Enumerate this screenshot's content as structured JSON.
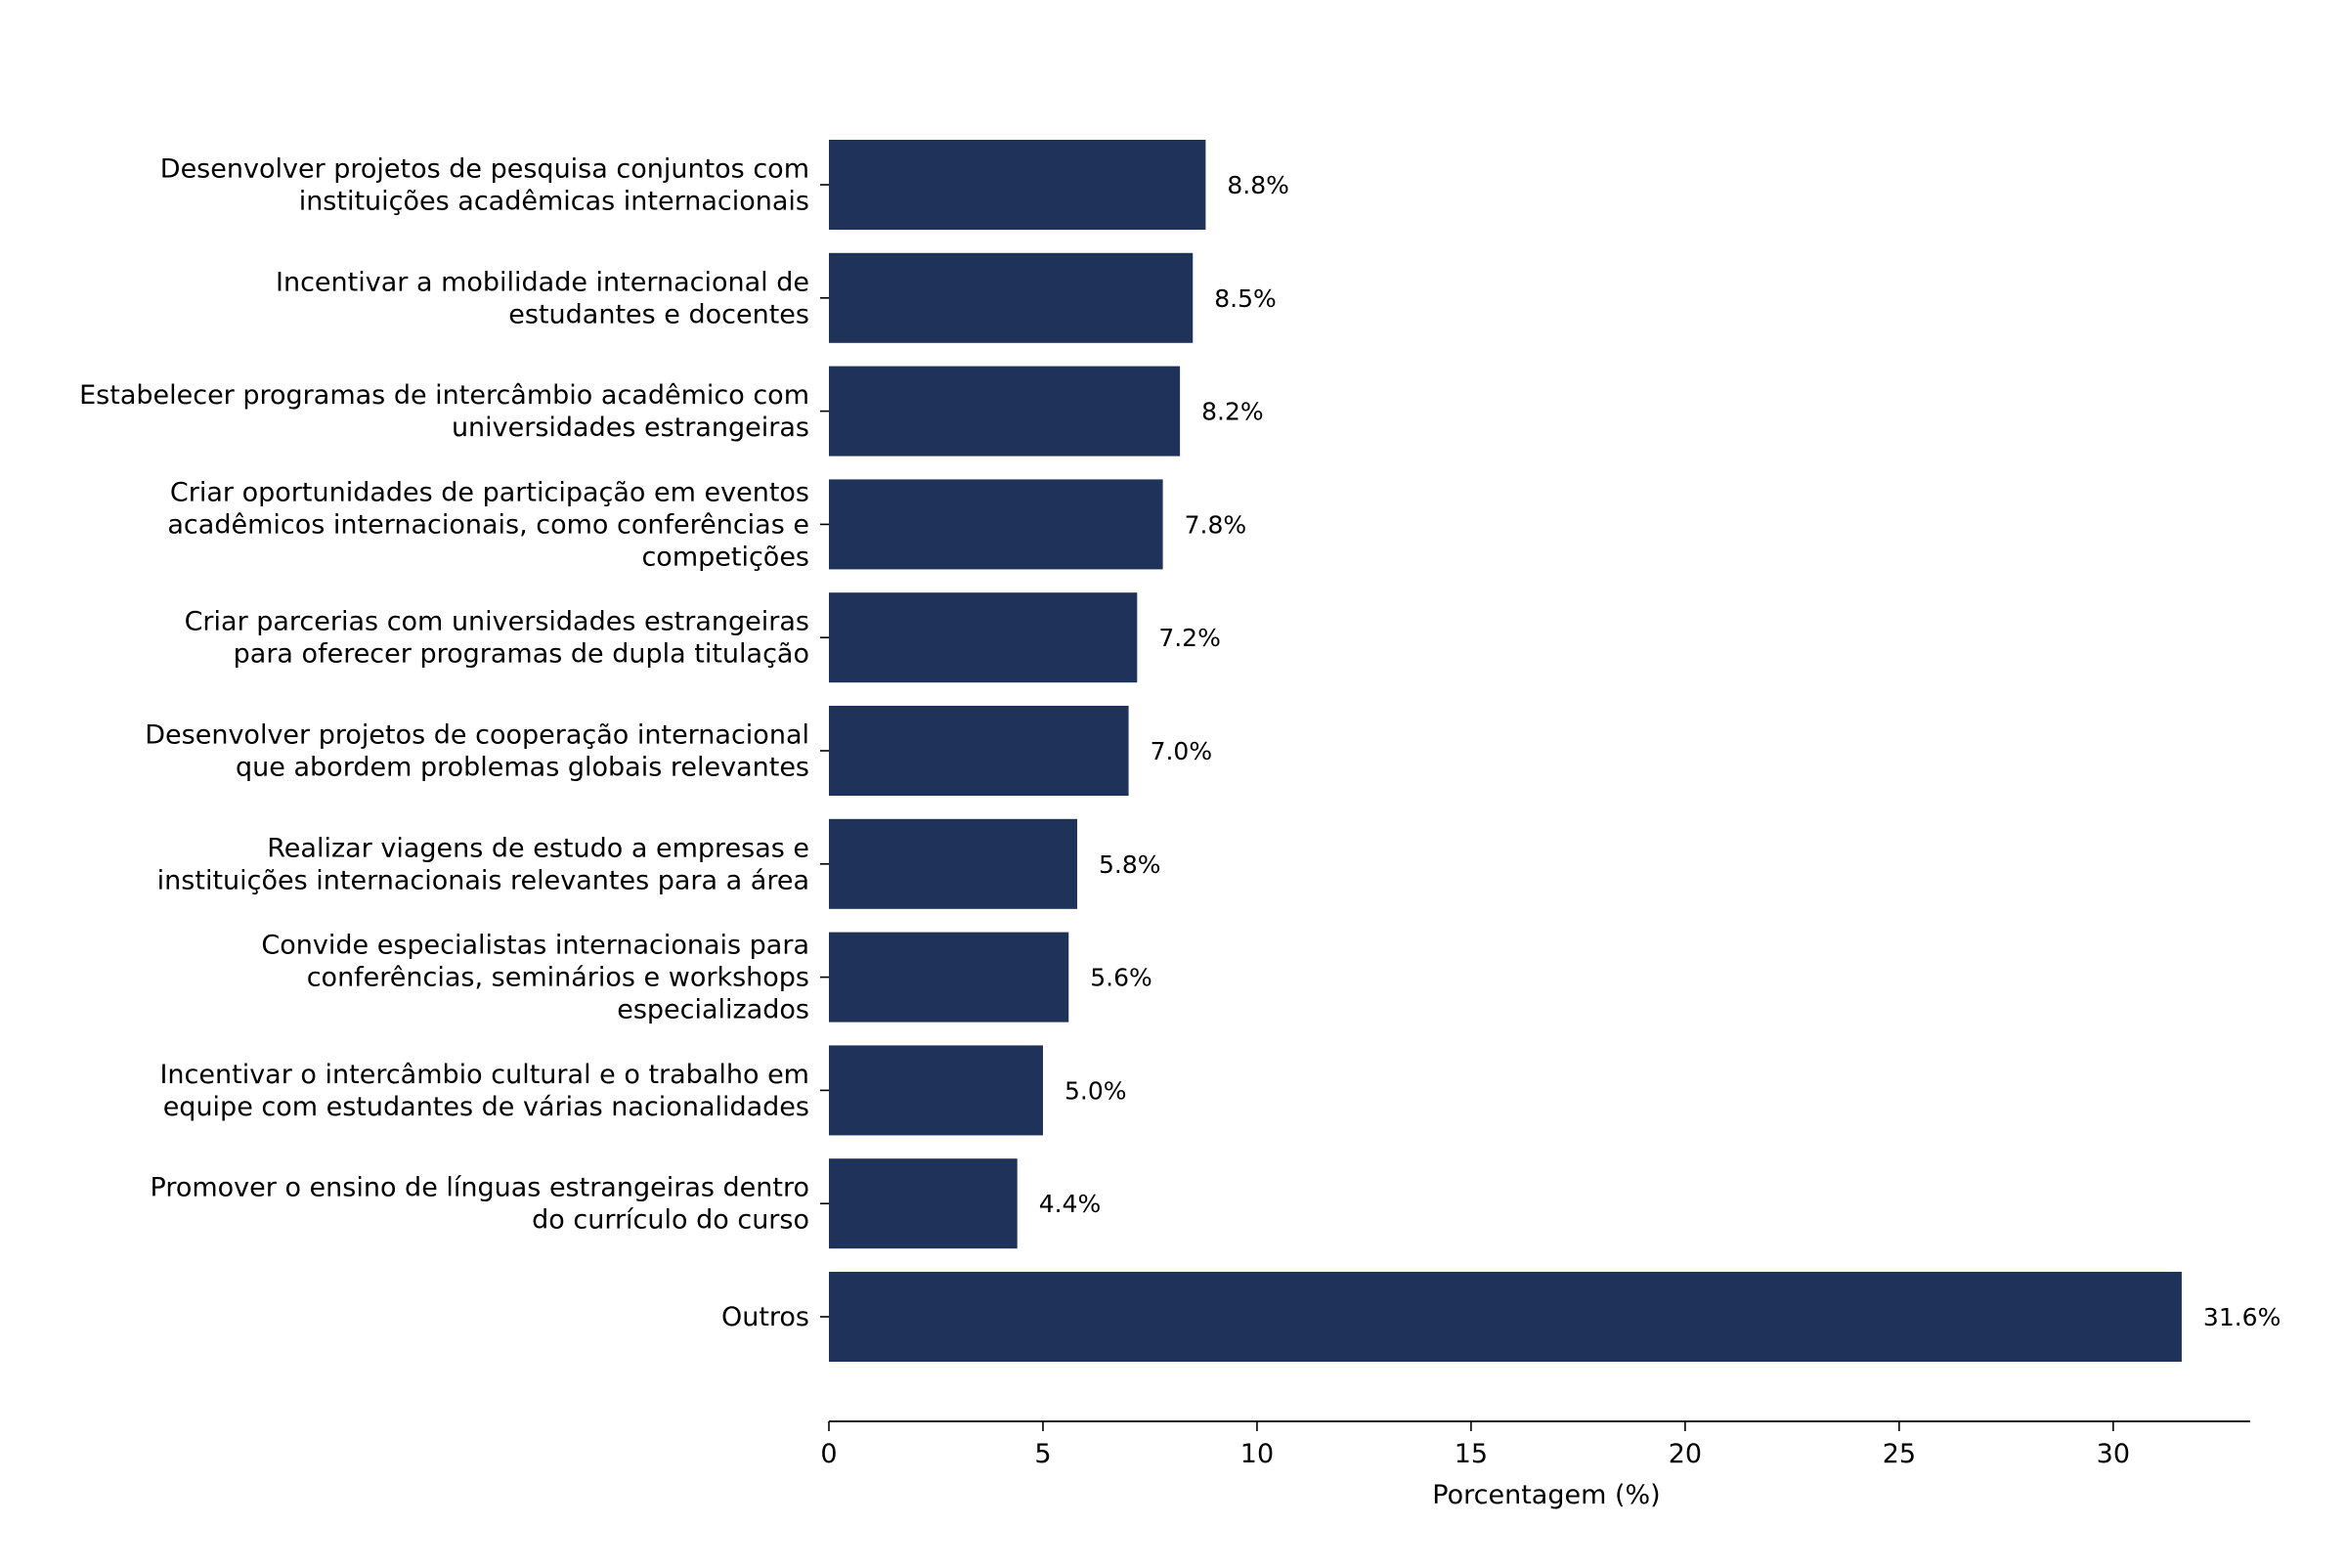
{
  "chart_data": {
    "type": "bar",
    "orientation": "horizontal",
    "categories": [
      "Desenvolver projetos de pesquisa conjuntos com\ninstituições acadêmicas internacionais",
      "Incentivar a mobilidade internacional de\nestudantes e docentes",
      "Estabelecer programas de intercâmbio acadêmico com\nuniversidades estrangeiras",
      "Criar oportunidades de participação em eventos\nacadêmicos internacionais, como conferências e\ncompetições",
      "Criar parcerias com universidades estrangeiras\npara oferecer programas de dupla titulação",
      "Desenvolver projetos de cooperação internacional\nque abordem problemas globais relevantes",
      "Realizar viagens de estudo a empresas e\ninstituições internacionais relevantes para a área",
      "Convide especialistas internacionais para\nconferências, seminários e workshops\nespecializados",
      "Incentivar o intercâmbio cultural e o trabalho em\nequipe com estudantes de várias nacionalidades",
      "Promover o ensino de línguas estrangeiras dentro\ndo currículo do curso",
      "Outros"
    ],
    "values": [
      8.8,
      8.5,
      8.2,
      7.8,
      7.2,
      7.0,
      5.8,
      5.6,
      5.0,
      4.4,
      31.6
    ],
    "data_labels": [
      "8.8%",
      "8.5%",
      "8.2%",
      "7.8%",
      "7.2%",
      "7.0%",
      "5.8%",
      "5.6%",
      "5.0%",
      "4.4%",
      "31.6%"
    ],
    "title": "",
    "xlabel": "Porcentagem (%)",
    "ylabel": "",
    "xlim": [
      0,
      33.2
    ],
    "x_ticks": [
      0,
      5,
      10,
      15,
      20,
      25,
      30
    ],
    "x_tick_labels": [
      "0",
      "5",
      "10",
      "15",
      "20",
      "25",
      "30"
    ],
    "grid": false,
    "bar_color": "#1f3259"
  }
}
